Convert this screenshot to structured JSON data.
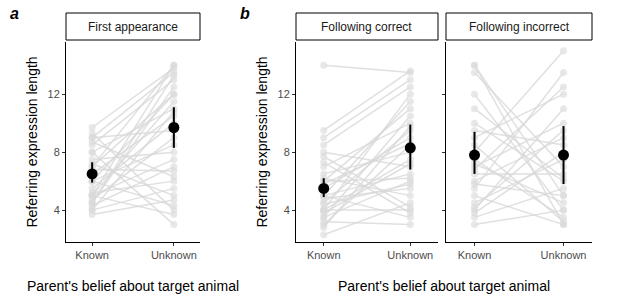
{
  "chart_data": [
    {
      "type": "line",
      "panel_label": "a",
      "title": "First appearance",
      "x_label": "Parent's belief about target animal",
      "y_label": "Referring expression length",
      "categories": [
        "Known",
        "Unknown"
      ],
      "ylim": [
        1.8,
        15.6
      ],
      "yticks": [
        4,
        8,
        12
      ],
      "grid": false,
      "marker": "circle",
      "color": "#d9d9d9",
      "series": [
        {
          "values": [
            5,
            14
          ]
        },
        {
          "values": [
            9.7,
            13.8
          ]
        },
        {
          "values": [
            9,
            13.5
          ]
        },
        {
          "values": [
            8.5,
            13
          ]
        },
        {
          "values": [
            4.5,
            12.5
          ]
        },
        {
          "values": [
            6,
            12
          ]
        },
        {
          "values": [
            7,
            12
          ]
        },
        {
          "values": [
            5,
            11.5
          ]
        },
        {
          "values": [
            8,
            11
          ]
        },
        {
          "values": [
            4,
            10.8
          ]
        },
        {
          "values": [
            6.5,
            10.5
          ]
        },
        {
          "values": [
            5.5,
            10
          ]
        },
        {
          "values": [
            9,
            9.5
          ]
        },
        {
          "values": [
            4.7,
            9
          ]
        },
        {
          "values": [
            6,
            8.5
          ]
        },
        {
          "values": [
            7.5,
            8
          ]
        },
        {
          "values": [
            5,
            7.5
          ]
        },
        {
          "values": [
            4.3,
            7
          ]
        },
        {
          "values": [
            6.8,
            6.7
          ]
        },
        {
          "values": [
            8.7,
            6.3
          ]
        },
        {
          "values": [
            5.2,
            6
          ]
        },
        {
          "values": [
            4,
            5.5
          ]
        },
        {
          "values": [
            7.2,
            5
          ]
        },
        {
          "values": [
            3.7,
            4.7
          ]
        },
        {
          "values": [
            6,
            4.3
          ]
        },
        {
          "values": [
            9.3,
            4
          ]
        },
        {
          "values": [
            5,
            3.7
          ]
        },
        {
          "values": [
            8,
            3
          ]
        },
        {
          "values": [
            4.5,
            13.3
          ]
        },
        {
          "values": [
            7,
            14
          ]
        },
        {
          "color": "#000000",
          "values": [
            6.5,
            9.7
          ],
          "ci_low": [
            5.9,
            8.3
          ],
          "ci_high": [
            7.3,
            11.1
          ]
        }
      ]
    },
    {
      "type": "line",
      "panel_label": "b",
      "title": "Following correct",
      "x_label": "Parent's belief about target animal",
      "y_label": "Referring expression length",
      "categories": [
        "Known",
        "Unknown"
      ],
      "ylim": [
        1.8,
        15.6
      ],
      "yticks": [
        4,
        8,
        12
      ],
      "grid": false,
      "marker": "circle",
      "color": "#d9d9d9",
      "series": [
        {
          "values": [
            14,
            13.5
          ]
        },
        {
          "values": [
            9.5,
            13.6
          ]
        },
        {
          "values": [
            9,
            13
          ]
        },
        {
          "values": [
            8.5,
            12.5
          ]
        },
        {
          "values": [
            4,
            12
          ]
        },
        {
          "values": [
            5,
            11.5
          ]
        },
        {
          "values": [
            6,
            11
          ]
        },
        {
          "values": [
            3.5,
            10.5
          ]
        },
        {
          "values": [
            7,
            10
          ]
        },
        {
          "values": [
            4.5,
            9.5
          ]
        },
        {
          "values": [
            5.5,
            9
          ]
        },
        {
          "values": [
            3,
            8.5
          ]
        },
        {
          "values": [
            6.5,
            8
          ]
        },
        {
          "values": [
            4,
            7.5
          ]
        },
        {
          "values": [
            8,
            7
          ]
        },
        {
          "values": [
            5,
            6.5
          ]
        },
        {
          "values": [
            3.5,
            6
          ]
        },
        {
          "values": [
            4.8,
            5.5
          ]
        },
        {
          "values": [
            6.2,
            5
          ]
        },
        {
          "values": [
            2.3,
            4.5
          ]
        },
        {
          "values": [
            4,
            4
          ]
        },
        {
          "values": [
            7.3,
            3.8
          ]
        },
        {
          "values": [
            5,
            3.5
          ]
        },
        {
          "values": [
            3.2,
            3
          ]
        },
        {
          "values": [
            6,
            6.2
          ]
        },
        {
          "values": [
            4.4,
            5.8
          ]
        },
        {
          "values": [
            5.8,
            8.6
          ]
        },
        {
          "values": [
            3.8,
            7.2
          ]
        },
        {
          "values": [
            7.7,
            4.2
          ]
        },
        {
          "values": [
            2.8,
            9.8
          ]
        },
        {
          "color": "#000000",
          "values": [
            5.5,
            8.3
          ],
          "ci_low": [
            4.9,
            6.8
          ],
          "ci_high": [
            6.2,
            9.9
          ]
        }
      ]
    },
    {
      "type": "line",
      "title": "Following incorrect",
      "tick_labels": "x",
      "categories": [
        "Known",
        "Unknown"
      ],
      "ylim": [
        1.8,
        15.6
      ],
      "yticks": [
        4,
        8,
        12
      ],
      "grid": false,
      "marker": "circle",
      "color": "#d9d9d9",
      "series": [
        {
          "values": [
            14,
            3
          ]
        },
        {
          "values": [
            14,
            5
          ]
        },
        {
          "values": [
            13.5,
            7
          ]
        },
        {
          "values": [
            12,
            4
          ]
        },
        {
          "values": [
            10,
            6
          ]
        },
        {
          "values": [
            9.5,
            8.5
          ]
        },
        {
          "values": [
            9,
            12
          ]
        },
        {
          "values": [
            8,
            15
          ]
        },
        {
          "values": [
            7.5,
            3.5
          ]
        },
        {
          "values": [
            7,
            10
          ]
        },
        {
          "values": [
            6.5,
            6.5
          ]
        },
        {
          "values": [
            6,
            9
          ]
        },
        {
          "values": [
            5.5,
            13.5
          ]
        },
        {
          "values": [
            5,
            3
          ]
        },
        {
          "values": [
            4.5,
            7.5
          ]
        },
        {
          "values": [
            4,
            11
          ]
        },
        {
          "values": [
            3.5,
            5.5
          ]
        },
        {
          "values": [
            3,
            4
          ]
        },
        {
          "values": [
            8.5,
            3.2
          ]
        },
        {
          "values": [
            6.8,
            12.5
          ]
        },
        {
          "values": [
            4.2,
            9.5
          ]
        },
        {
          "values": [
            5.8,
            5
          ]
        },
        {
          "values": [
            11,
            6.2
          ]
        },
        {
          "values": [
            3.8,
            8
          ]
        },
        {
          "values": [
            7.2,
            4.5
          ]
        },
        {
          "color": "#000000",
          "values": [
            7.8,
            7.8
          ],
          "ci_low": [
            6.5,
            5.8
          ],
          "ci_high": [
            9.4,
            9.8
          ]
        }
      ]
    }
  ]
}
